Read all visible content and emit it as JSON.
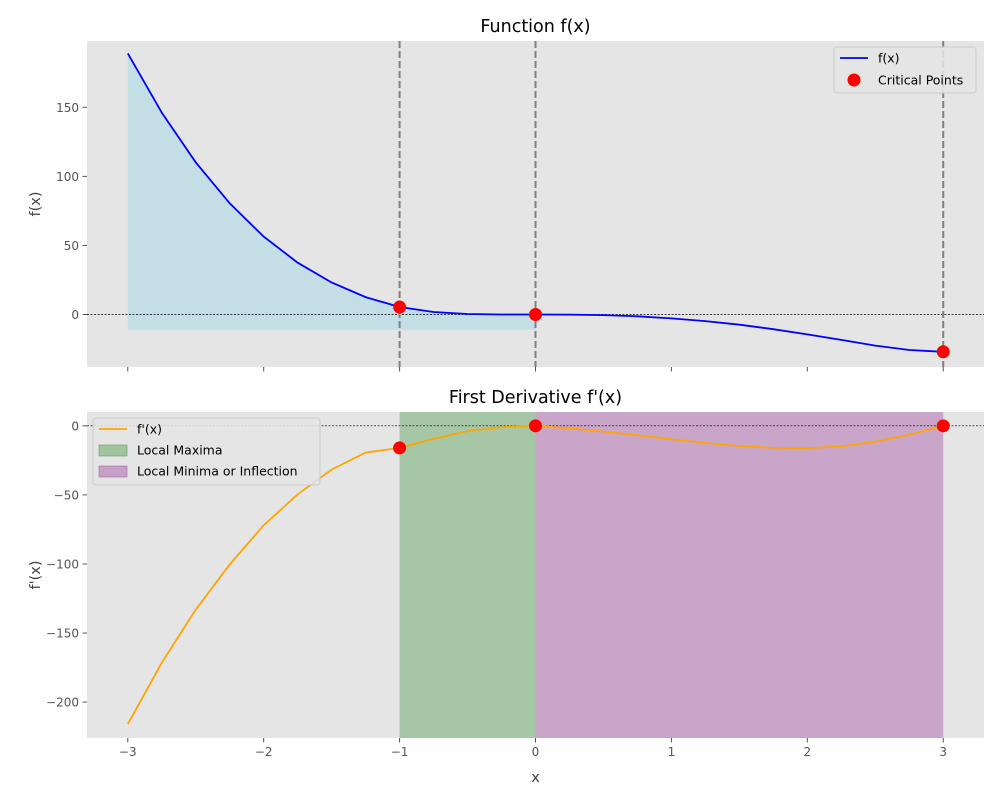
{
  "chart_data": [
    {
      "type": "line",
      "title": "Function f(x)",
      "xlabel": "",
      "ylabel": "f(x)",
      "xlim": [
        -3.3,
        3.3
      ],
      "ylim": [
        -38,
        198
      ],
      "xticks": [
        -3,
        -2,
        -1,
        0,
        1,
        2,
        3
      ],
      "yticks": [
        0,
        50,
        100,
        150
      ],
      "ytick_labels": [
        "0",
        "50",
        "100",
        "150"
      ],
      "grid": false,
      "legend": {
        "placement": "top-right",
        "entries": [
          "f(x)",
          "Critical Points"
        ]
      },
      "series": [
        {
          "name": "f(x)",
          "color": "#0000ff",
          "x": [
            -3,
            -2.75,
            -2.5,
            -2.25,
            -2,
            -1.75,
            -1.5,
            -1.25,
            -1,
            -0.75,
            -0.5,
            -0.25,
            0,
            0.25,
            0.5,
            0.75,
            1,
            1.25,
            1.5,
            1.75,
            2,
            2.25,
            2.5,
            2.75,
            3
          ],
          "y": [
            189,
            146.1,
            110.2,
            80.5,
            56.4,
            37.5,
            23.2,
            12.6,
            5.4,
            1.8,
            0.4,
            0.04,
            0,
            -0.1,
            -0.4,
            -1.3,
            -2.8,
            -4.8,
            -7.4,
            -10.6,
            -14.4,
            -18.4,
            -22.5,
            -25.7,
            -27
          ]
        },
        {
          "name": "Critical Points",
          "type": "scatter",
          "color": "#ff0000",
          "x": [
            -1,
            0,
            3
          ],
          "y": [
            5.4,
            0,
            -27
          ]
        }
      ],
      "fill": {
        "color": "#add8e6",
        "x_from": -3,
        "x_to": 0,
        "baseline": -11
      },
      "vlines": [
        -1,
        0,
        3
      ],
      "hline": 0
    },
    {
      "type": "line",
      "title": "First Derivative f'(x)",
      "xlabel": "x",
      "ylabel": "f'(x)",
      "xlim": [
        -3.3,
        3.3
      ],
      "ylim": [
        -226,
        10
      ],
      "xticks": [
        -3,
        -2,
        -1,
        0,
        1,
        2,
        3
      ],
      "xtick_labels": [
        "−3",
        "−2",
        "−1",
        "0",
        "1",
        "2",
        "3"
      ],
      "yticks": [
        0,
        -50,
        -100,
        -150,
        -200
      ],
      "ytick_labels": [
        "0",
        "−50",
        "−100",
        "−150",
        "−200"
      ],
      "grid": false,
      "legend": {
        "placement": "top-left",
        "entries": [
          "f'(x)",
          "Local Maxima",
          "Local Minima or Inflection"
        ]
      },
      "series": [
        {
          "name": "f'(x)",
          "color": "#ffa500",
          "x": [
            -3,
            -2.75,
            -2.5,
            -2.25,
            -2,
            -1.75,
            -1.5,
            -1.25,
            -1,
            -0.75,
            -0.5,
            -0.25,
            0,
            0.25,
            0.5,
            0.75,
            1,
            1.25,
            1.5,
            1.75,
            2,
            2.25,
            2.5,
            2.75,
            3
          ],
          "y": [
            -216,
            -171.5,
            -133.1,
            -100.4,
            -72,
            -49.6,
            -31.7,
            -19.4,
            -16,
            -9.5,
            -3.8,
            -0.9,
            0,
            -1.8,
            -4.2,
            -6.8,
            -9.7,
            -12.4,
            -14.6,
            -16,
            -16.2,
            -14.9,
            -11.5,
            -6.4,
            0
          ]
        },
        {
          "name": "Critical Points",
          "type": "scatter",
          "color": "#ff0000",
          "x": [
            -1,
            0,
            3
          ],
          "y": [
            -16,
            0,
            0
          ]
        }
      ],
      "bands": [
        {
          "name": "Local Maxima",
          "x_from": -1,
          "x_to": 0,
          "color": "#8fbc8f"
        },
        {
          "name": "Local Minima or Inflection",
          "x_from": 0,
          "x_to": 3,
          "color": "#bf8fbf"
        }
      ],
      "hline": 0
    }
  ],
  "colors": {
    "axes_bg": "#e5e5e5",
    "tick_text": "#555555",
    "label_text": "#444444",
    "vline": "#808080"
  }
}
